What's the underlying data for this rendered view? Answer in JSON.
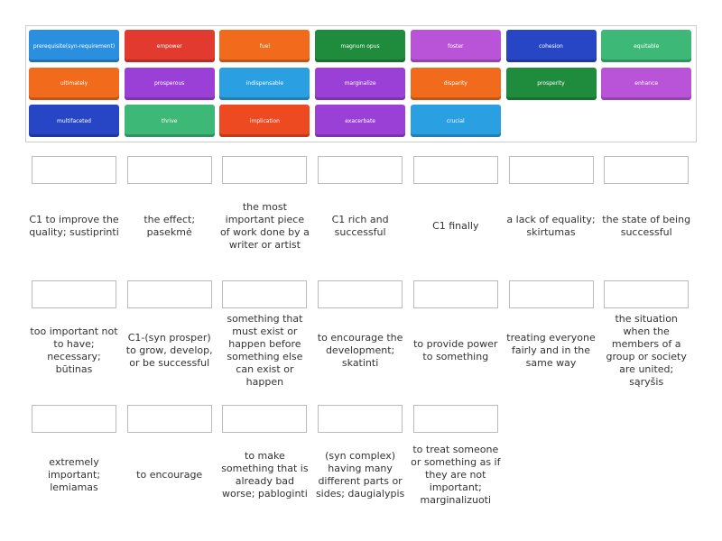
{
  "tiles": [
    {
      "text": "prerequisite(syn-requirement)",
      "color": "#2b8fe0"
    },
    {
      "text": "empower",
      "color": "#e23a2f"
    },
    {
      "text": "fuel",
      "color": "#f26b1d"
    },
    {
      "text": "magnum opus",
      "color": "#1f8b3d"
    },
    {
      "text": "foster",
      "color": "#b954d8"
    },
    {
      "text": "cohesion",
      "color": "#2746c6"
    },
    {
      "text": "equitable",
      "color": "#3db877"
    },
    {
      "text": "ultimately",
      "color": "#f26b1d"
    },
    {
      "text": "prosperous",
      "color": "#9b40d6"
    },
    {
      "text": "indispensable",
      "color": "#2a9fe2"
    },
    {
      "text": "marginalize",
      "color": "#9b40d6"
    },
    {
      "text": "disparity",
      "color": "#f26b1d"
    },
    {
      "text": "prosperity",
      "color": "#1f8b3d"
    },
    {
      "text": "enhance",
      "color": "#b954d8"
    },
    {
      "text": "multifaceted",
      "color": "#2746c6"
    },
    {
      "text": "thrive",
      "color": "#3db877"
    },
    {
      "text": "implication",
      "color": "#ee4a22"
    },
    {
      "text": "exacerbate",
      "color": "#9b40d6"
    },
    {
      "text": "crucial",
      "color": "#2a9fe2"
    }
  ],
  "definitions": [
    [
      "C1 to improve the quality; sustiprinti",
      "the effect; pasekmė",
      "the most important piece of work done by a writer or artist",
      "C1 rich and successful",
      "C1 finally",
      "a lack of equality; skirtumas",
      "the state of being successful"
    ],
    [
      "too important not to have; necessary; būtinas",
      "C1-(syn prosper) to grow, develop, or be successful",
      "something that must exist or happen before something else can exist or happen",
      "to encourage the development; skatinti",
      "to provide power to something",
      "treating everyone fairly and in the same way",
      "the situation when the members of a group or society are united; sąryšis"
    ],
    [
      "extremely important; lemiamas",
      "to encourage",
      "to make something that is already bad worse; pabloginti",
      "(syn complex) having many different parts or sides; daugialypis",
      "to treat someone or something as if they are not important; marginalizuoti"
    ]
  ]
}
